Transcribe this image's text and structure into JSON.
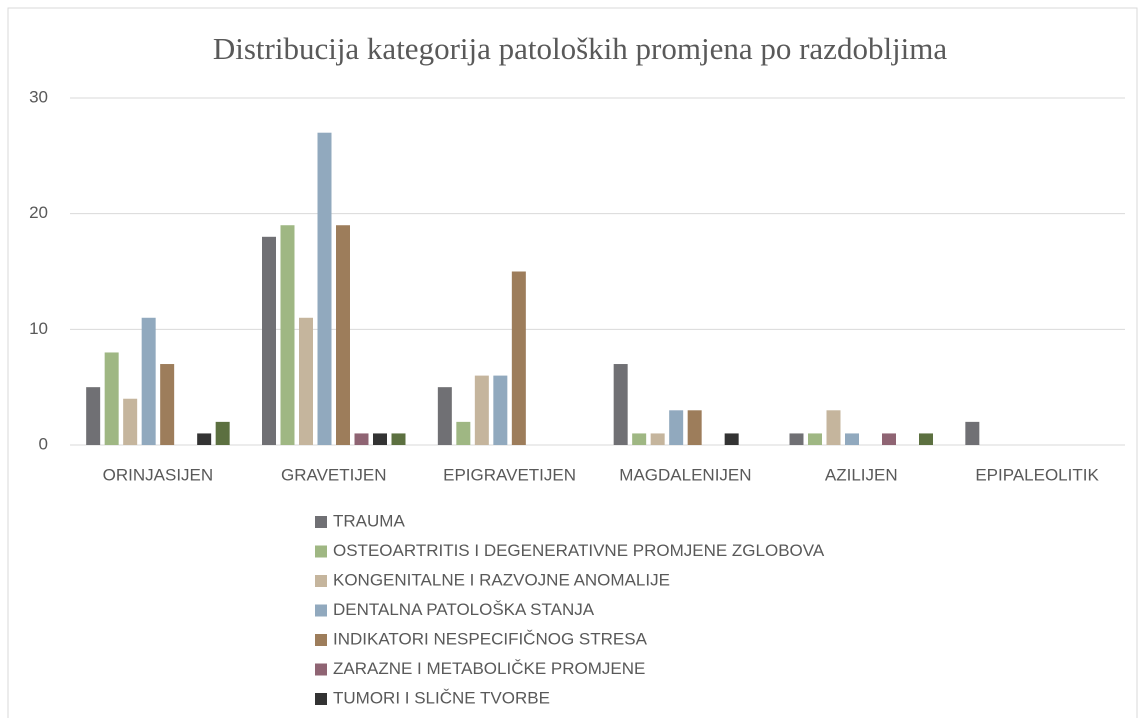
{
  "chart_data": {
    "type": "bar",
    "title": "Distribucija kategorija patoloških promjena po razdobljima",
    "categories": [
      "ORINJASIJEN",
      "GRAVETIJEN",
      "EPIGRAVETIJEN",
      "MAGDALENIJEN",
      "AZILIJEN",
      "EPIPALEOLITIK"
    ],
    "series": [
      {
        "name": "TRAUMA",
        "color": "#707074",
        "values": [
          5,
          18,
          5,
          7,
          1,
          2
        ]
      },
      {
        "name": "OSTEOARTRITIS I DEGENERATIVNE PROMJENE ZGLOBOVA",
        "color": "#9fb783",
        "values": [
          8,
          19,
          2,
          1,
          1,
          0
        ]
      },
      {
        "name": "KONGENITALNE I RAZVOJNE ANOMALIJE",
        "color": "#c5b59d",
        "values": [
          4,
          11,
          6,
          1,
          3,
          0
        ]
      },
      {
        "name": "DENTALNA PATOLOŠKA STANJA",
        "color": "#91a9be",
        "values": [
          11,
          27,
          6,
          3,
          1,
          0
        ]
      },
      {
        "name": "INDIKATORI NESPECIFIČNOG STRESA",
        "color": "#9d7d5b",
        "values": [
          7,
          19,
          15,
          3,
          0,
          0
        ]
      },
      {
        "name": "ZARAZNE I METABOLIČKE PROMJENE",
        "color": "#8f6473",
        "values": [
          0,
          1,
          0,
          0,
          1,
          0
        ]
      },
      {
        "name": "TUMORI I SLIČNE TVORBE",
        "color": "#333333",
        "values": [
          1,
          1,
          0,
          1,
          0,
          0
        ]
      },
      {
        "color": "#5c7040",
        "values": [
          2,
          1,
          0,
          0,
          1,
          0
        ]
      }
    ],
    "ylim": [
      0,
      30
    ],
    "yticks": [
      0,
      10,
      20,
      30
    ],
    "grid": true,
    "legend": "bottom"
  }
}
